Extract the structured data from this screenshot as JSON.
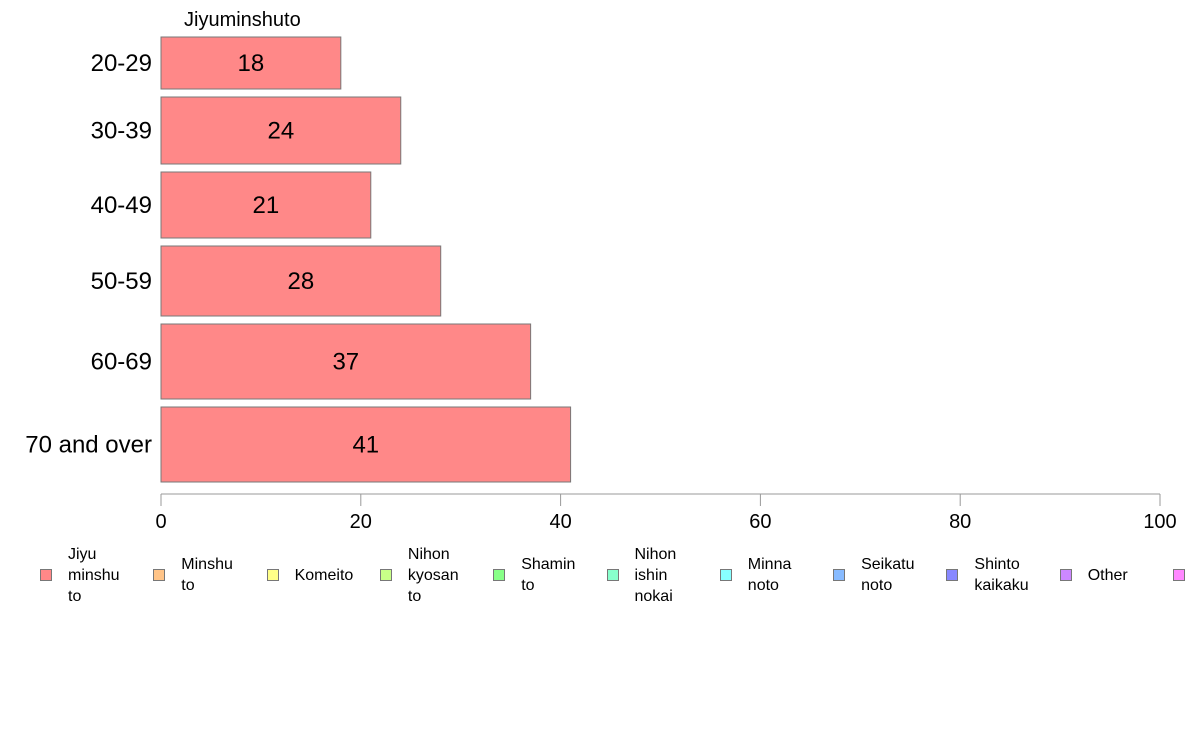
{
  "chart_data": {
    "type": "bar",
    "orientation": "horizontal",
    "title": "Jiyuminshuto",
    "categories": [
      "20-29",
      "30-39",
      "40-49",
      "50-59",
      "60-69",
      "70 and over"
    ],
    "series": [
      {
        "name": "Jiyu minshu to",
        "values": [
          18,
          24,
          21,
          28,
          37,
          41
        ],
        "color": "#ff8888"
      }
    ],
    "bar_labels": [
      "18",
      "24",
      "21",
      "28",
      "37",
      "41"
    ],
    "xlim": [
      0,
      100
    ],
    "xticks": [
      0,
      20,
      40,
      60,
      80,
      100
    ],
    "xtick_labels": [
      "0",
      "20",
      "40",
      "60",
      "80",
      "100"
    ],
    "grid": false,
    "legend_position": "bottom",
    "legend": [
      {
        "label": "Jiyu\nminshu\nto",
        "color": "#ff8888"
      },
      {
        "label": "Minshu\nto",
        "color": "#ffc488"
      },
      {
        "label": "Komeito",
        "color": "#ffff88"
      },
      {
        "label": "Nihon\nkyosan\nto",
        "color": "#c8ff88"
      },
      {
        "label": "Shamin\nto",
        "color": "#88ff88"
      },
      {
        "label": "Nihon\nishin\nnokai",
        "color": "#88ffcc"
      },
      {
        "label": "Minna\nnoto",
        "color": "#88ffff"
      },
      {
        "label": "Seikatu\nnoto",
        "color": "#88bbff"
      },
      {
        "label": "Shinto\nkaikaku",
        "color": "#8888ff"
      },
      {
        "label": "Other",
        "color": "#cc88ff"
      },
      {
        "label": "",
        "color": "#ff88ff"
      }
    ]
  }
}
